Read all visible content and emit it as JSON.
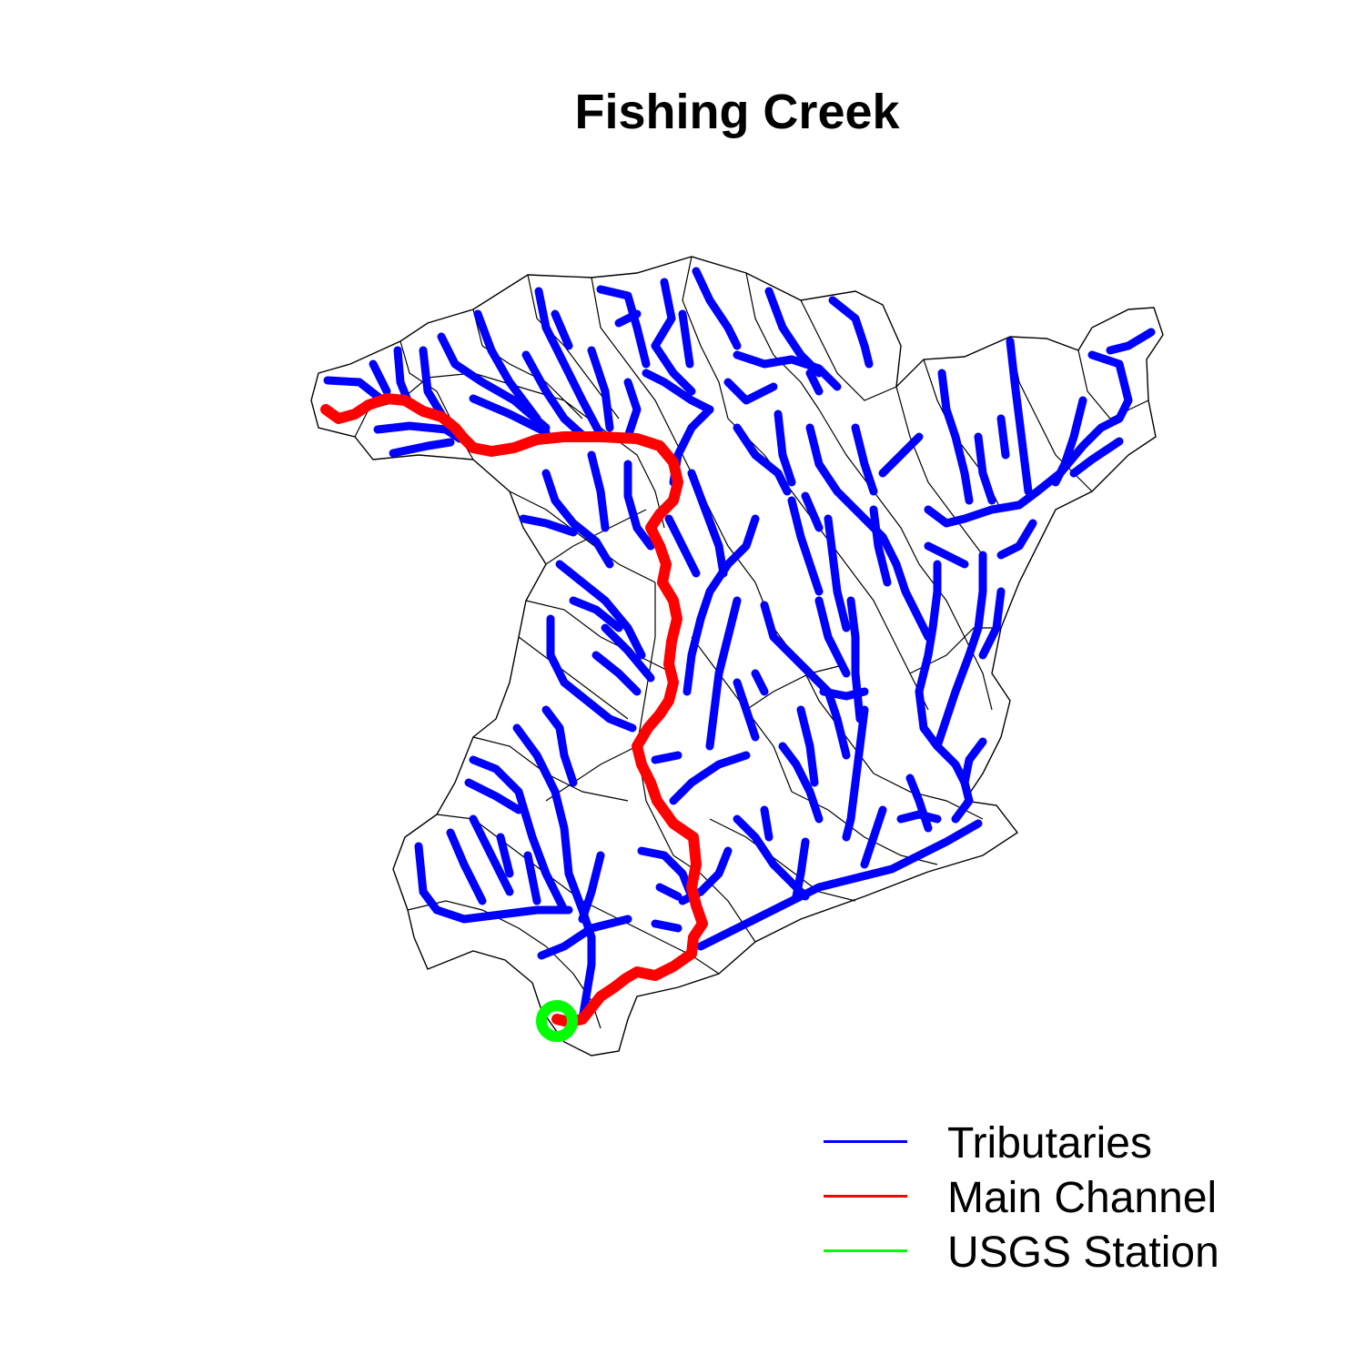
{
  "title": "Fishing Creek",
  "colors": {
    "tributaries": "#0000ff",
    "main_channel": "#ff0000",
    "usgs_station": "#00ff00",
    "boundary": "#000000"
  },
  "legend": [
    {
      "label": "Tributaries",
      "color": "#0000ff"
    },
    {
      "label": "Main Channel",
      "color": "#ff0000"
    },
    {
      "label": "USGS Station",
      "color": "#00ff00"
    }
  ]
}
